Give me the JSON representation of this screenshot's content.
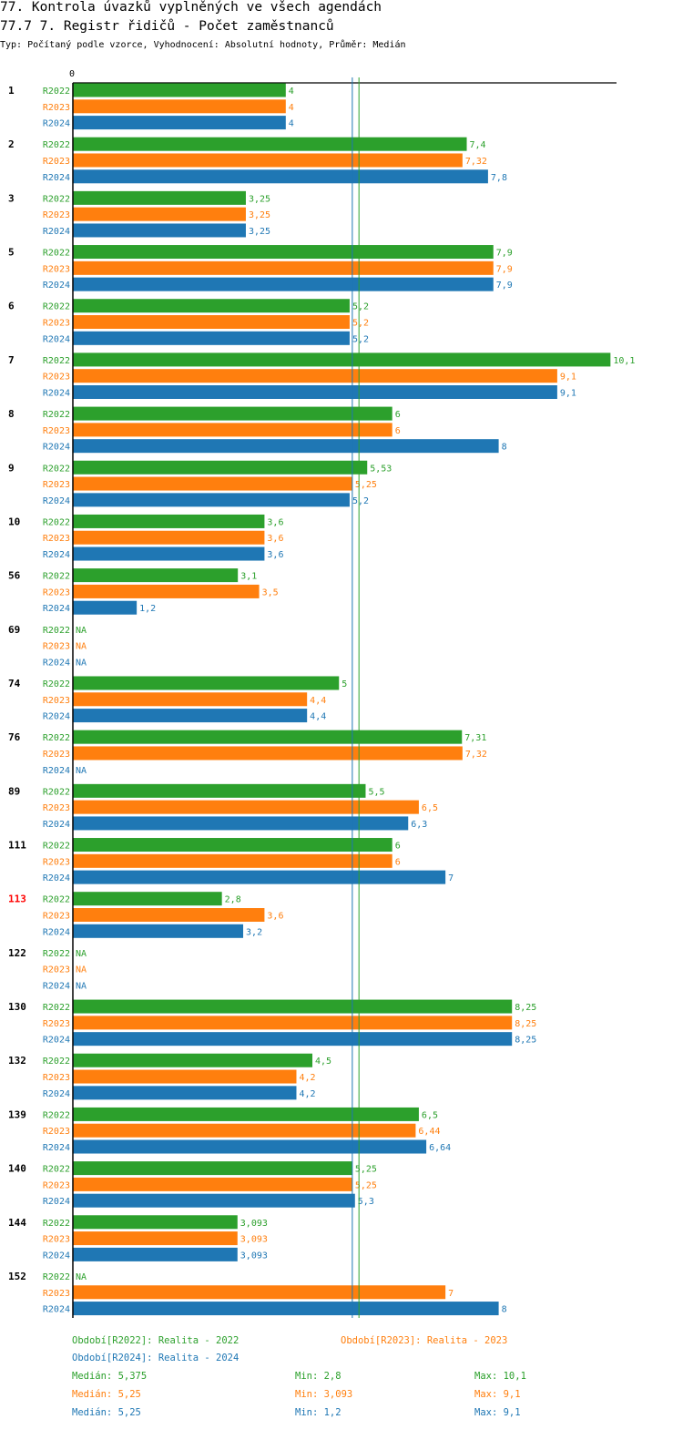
{
  "header": {
    "title1": "77. Kontrola úvazků vyplněných ve všech agendách",
    "title2": "77.7 7. Registr řidičů - Počet zaměstnanců",
    "subtitle": "Typ: Počítaný podle vzorce, Vyhodnocení: Absolutní hodnoty, Průměr: Medián"
  },
  "colors": {
    "R2022": "#2ca02c",
    "R2023": "#ff7f0e",
    "R2024": "#1f77b4",
    "highlight": "#ff0000"
  },
  "chart_data": {
    "type": "bar",
    "orientation": "horizontal",
    "title": "77.7 7. Registr řidičů - Počet zaměstnanců",
    "axis_zero_label": "0",
    "xlim": [
      0,
      10.1
    ],
    "series_names": [
      "R2022",
      "R2023",
      "R2024"
    ],
    "groups": [
      {
        "id": "1",
        "values": [
          "4",
          "4",
          "4"
        ]
      },
      {
        "id": "2",
        "values": [
          "7,4",
          "7,32",
          "7,8"
        ]
      },
      {
        "id": "3",
        "values": [
          "3,25",
          "3,25",
          "3,25"
        ]
      },
      {
        "id": "5",
        "values": [
          "7,9",
          "7,9",
          "7,9"
        ]
      },
      {
        "id": "6",
        "values": [
          "5,2",
          "5,2",
          "5,2"
        ]
      },
      {
        "id": "7",
        "values": [
          "10,1",
          "9,1",
          "9,1"
        ]
      },
      {
        "id": "8",
        "values": [
          "6",
          "6",
          "8"
        ]
      },
      {
        "id": "9",
        "values": [
          "5,53",
          "5,25",
          "5,2"
        ]
      },
      {
        "id": "10",
        "values": [
          "3,6",
          "3,6",
          "3,6"
        ]
      },
      {
        "id": "56",
        "values": [
          "3,1",
          "3,5",
          "1,2"
        ]
      },
      {
        "id": "69",
        "values": [
          "NA",
          "NA",
          "NA"
        ]
      },
      {
        "id": "74",
        "values": [
          "5",
          "4,4",
          "4,4"
        ]
      },
      {
        "id": "76",
        "values": [
          "7,31",
          "7,32",
          "NA"
        ]
      },
      {
        "id": "89",
        "values": [
          "5,5",
          "6,5",
          "6,3"
        ]
      },
      {
        "id": "111",
        "values": [
          "6",
          "6",
          "7"
        ]
      },
      {
        "id": "113",
        "values": [
          "2,8",
          "3,6",
          "3,2"
        ],
        "highlight": true
      },
      {
        "id": "122",
        "values": [
          "NA",
          "NA",
          "NA"
        ]
      },
      {
        "id": "130",
        "values": [
          "8,25",
          "8,25",
          "8,25"
        ]
      },
      {
        "id": "132",
        "values": [
          "4,5",
          "4,2",
          "4,2"
        ]
      },
      {
        "id": "139",
        "values": [
          "6,5",
          "6,44",
          "6,64"
        ]
      },
      {
        "id": "140",
        "values": [
          "5,25",
          "5,25",
          "5,3"
        ]
      },
      {
        "id": "144",
        "values": [
          "3,093",
          "3,093",
          "3,093"
        ]
      },
      {
        "id": "152",
        "values": [
          "NA",
          "7",
          "8"
        ]
      }
    ],
    "median_lines": [
      {
        "series": "R2022",
        "value": 5.375
      },
      {
        "series": "R2024",
        "value": 5.25
      }
    ]
  },
  "legend": {
    "r2022": "Období[R2022]: Realita - 2022",
    "r2023": "Období[R2023]: Realita - 2023",
    "r2024": "Období[R2024]: Realita - 2024"
  },
  "stats": [
    {
      "series": "R2022",
      "median": "Medián: 5,375",
      "min": "Min: 2,8",
      "max": "Max: 10,1"
    },
    {
      "series": "R2023",
      "median": "Medián: 5,25",
      "min": "Min: 3,093",
      "max": "Max: 9,1"
    },
    {
      "series": "R2024",
      "median": "Medián: 5,25",
      "min": "Min: 1,2",
      "max": "Max: 9,1"
    }
  ]
}
